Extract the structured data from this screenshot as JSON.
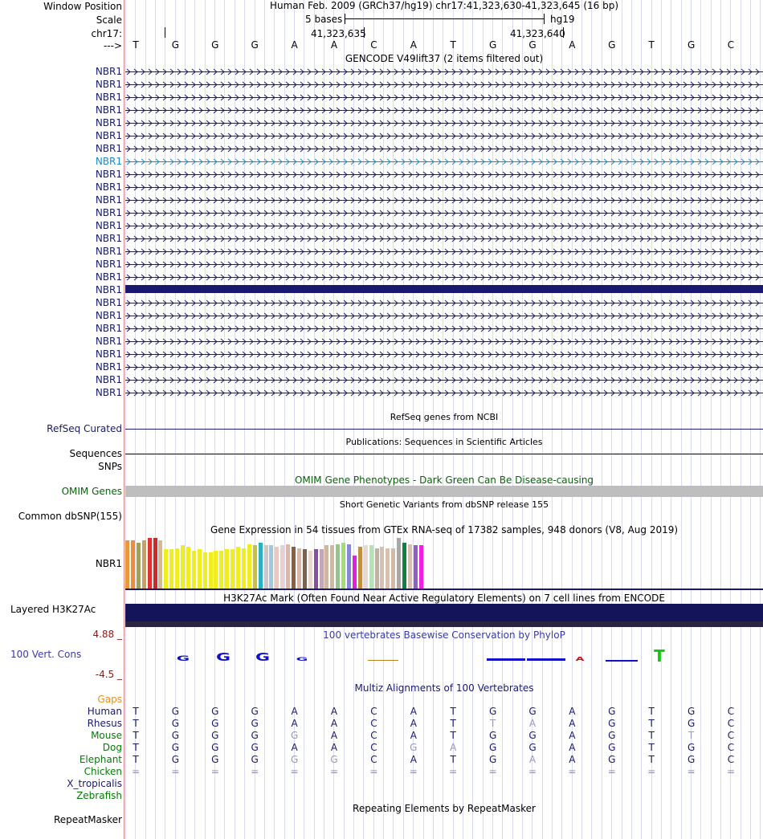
{
  "header": {
    "window_position_label": "Window Position",
    "scale_label": "Scale",
    "chrom_label": "chr17:",
    "strand_label": "--->",
    "assembly_title": "Human Feb. 2009 (GRCh37/hg19)   chr17:41,323,630-41,323,645 (16 bp)",
    "scale_text": "5 bases",
    "scale_db": "hg19",
    "coord_a": "41,323,635",
    "coord_b": "41,323,640",
    "bases": [
      "T",
      "G",
      "G",
      "G",
      "A",
      "A",
      "C",
      "A",
      "T",
      "G",
      "G",
      "A",
      "G",
      "T",
      "G",
      "C"
    ]
  },
  "gencode": {
    "title": "GENCODE V49lift37 (2 items filtered out)",
    "genes": [
      "NBR1",
      "NBR1",
      "NBR1",
      "NBR1",
      "NBR1",
      "NBR1",
      "NBR1",
      "NBR1",
      "NBR1",
      "NBR1",
      "NBR1",
      "NBR1",
      "NBR1",
      "NBR1",
      "NBR1",
      "NBR1",
      "NBR1",
      "NBR1",
      "NBR1",
      "NBR1",
      "NBR1",
      "NBR1",
      "NBR1",
      "NBR1",
      "NBR1",
      "NBR1"
    ],
    "highlighted_index": 7,
    "thick_index": 17
  },
  "refseq": {
    "title": "RefSeq genes from NCBI",
    "label": "RefSeq Curated"
  },
  "publications": {
    "title": "Publications: Sequences in Scientific Articles",
    "label": "Sequences"
  },
  "snps": {
    "label": "SNPs"
  },
  "omim": {
    "title": "OMIM Gene Phenotypes - Dark Green Can Be Disease-causing",
    "label": "OMIM Genes"
  },
  "dbsnp": {
    "title": "Short Genetic Variants from dbSNP release 155",
    "label": "Common dbSNP(155)"
  },
  "gtex": {
    "title": "Gene Expression in 54 tissues from GTEx RNA-seq of 17382 samples, 948 donors (V8, Aug 2019)",
    "label": "NBR1",
    "values": [
      0.95,
      0.95,
      0.9,
      0.95,
      1,
      1,
      0.95,
      0.78,
      0.78,
      0.8,
      0.85,
      0.82,
      0.75,
      0.77,
      0.72,
      0.72,
      0.75,
      0.75,
      0.77,
      0.77,
      0.82,
      0.8,
      0.88,
      0.85,
      0.9,
      0.85,
      0.85,
      0.82,
      0.85,
      0.88,
      0.82,
      0.8,
      0.78,
      0.75,
      0.78,
      0.78,
      0.85,
      0.85,
      0.88,
      0.9,
      0.88,
      0.65,
      0.82,
      0.85,
      0.85,
      0.8,
      0.82,
      0.8,
      0.8,
      1,
      0.9,
      0.88,
      0.85,
      0.85
    ],
    "colors": [
      "#e89a3a",
      "#f08c3c",
      "#a0a060",
      "#c8a060",
      "#e03030",
      "#d02828",
      "#d8b890",
      "#eeee20",
      "#eeee20",
      "#eeee20",
      "#eeee20",
      "#eeee20",
      "#eeee20",
      "#eeee20",
      "#eeee20",
      "#eeee20",
      "#eeee20",
      "#eeee20",
      "#eeee20",
      "#eeee20",
      "#eeee20",
      "#eeee20",
      "#eeee20",
      "#c8c040",
      "#2cb0c0",
      "#c8c8c8",
      "#a0c8e0",
      "#e8c8c0",
      "#e8d0d0",
      "#d8b8a8",
      "#8a6040",
      "#d8b8a8",
      "#806050",
      "#e8d8d0",
      "#8850a0",
      "#c0a8b8",
      "#d0b8a0",
      "#d0b8a0",
      "#98c090",
      "#a0e070",
      "#8888d8",
      "#e020e0",
      "#c09040",
      "#e8d8d0",
      "#b8e0b8",
      "#c8b0a0",
      "#d8c0b0",
      "#d8c0b0",
      "#d8b8a0",
      "#a8a8a8",
      "#108040",
      "#d8c0b0",
      "#9060c0",
      "#f020e0"
    ]
  },
  "h3k27ac": {
    "title": "H3K27Ac Mark (Often Found Near Active Regulatory Elements) on 7 cell lines from ENCODE",
    "label": "Layered H3K27Ac"
  },
  "phylop": {
    "title": "100 vertebrates Basewise Conservation by PhyloP",
    "label": "100 Vert. Cons",
    "max": "4.88 _",
    "min": "-4.5 _"
  },
  "multiz": {
    "title": "Multiz Alignments of 100 Vertebrates",
    "gaps_label": "Gaps",
    "species": [
      {
        "name": "Human",
        "bases": [
          "T",
          "G",
          "G",
          "G",
          "A",
          "A",
          "C",
          "A",
          "T",
          "G",
          "G",
          "A",
          "G",
          "T",
          "G",
          "C"
        ]
      },
      {
        "name": "Rhesus",
        "bases": [
          "T",
          "G",
          "G",
          "G",
          "A",
          "A",
          "C",
          "A",
          "T",
          "T",
          "A",
          "A",
          "G",
          "T",
          "G",
          "C"
        ]
      },
      {
        "name": "Mouse",
        "bases": [
          "T",
          "G",
          "G",
          "G",
          "G",
          "A",
          "C",
          "A",
          "T",
          "G",
          "G",
          "A",
          "G",
          "T",
          "T",
          "C"
        ]
      },
      {
        "name": "Dog",
        "bases": [
          "T",
          "G",
          "G",
          "G",
          "A",
          "A",
          "C",
          "G",
          "A",
          "G",
          "G",
          "A",
          "G",
          "T",
          "G",
          "C"
        ]
      },
      {
        "name": "Elephant",
        "bases": [
          "T",
          "G",
          "G",
          "G",
          "G",
          "G",
          "C",
          "A",
          "T",
          "G",
          "A",
          "A",
          "G",
          "T",
          "G",
          "C"
        ]
      },
      {
        "name": "Chicken",
        "bases": [
          "=",
          "=",
          "=",
          "=",
          "=",
          "=",
          "=",
          "=",
          "=",
          "=",
          "=",
          "=",
          "=",
          "=",
          "=",
          "="
        ]
      },
      {
        "name": "X_tropicalis",
        "bases": []
      },
      {
        "name": "Zebrafish",
        "bases": []
      }
    ]
  },
  "repeatmasker": {
    "title": "Repeating Elements by RepeatMasker",
    "label": "RepeatMasker"
  },
  "colors": {
    "navy": "#191970",
    "light_blue": "#1e88c8",
    "grid": "#dcdcf0",
    "omim_gray": "#bebebe",
    "h3k_dark": "#14145a",
    "omim_green": "#0a640a",
    "dark_red": "#8b1a1a",
    "gaps_orange": "#e89020",
    "green_label": "#087a08",
    "phylo_blue": "#3a3aa8"
  }
}
